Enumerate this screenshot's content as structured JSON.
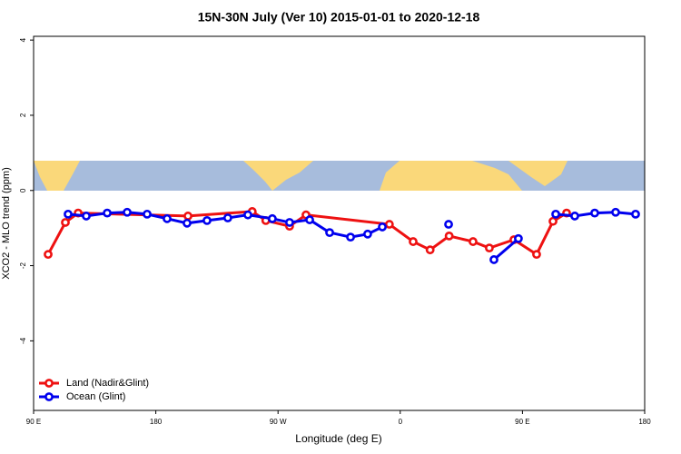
{
  "chart_data": {
    "type": "line",
    "title": "15N-30N July (Ver 10)   2015-01-01 to 2020-12-18",
    "xlabel": "Longitude (deg E)",
    "ylabel": "XCO2 - MLO trend (ppm)",
    "xlim": [
      90,
      540
    ],
    "ylim": [
      -5.85,
      4.1
    ],
    "xticks": [
      {
        "value": 90,
        "label": "90 E"
      },
      {
        "value": 180,
        "label": "180"
      },
      {
        "value": 270,
        "label": "90 W"
      },
      {
        "value": 360,
        "label": "0"
      },
      {
        "value": 450,
        "label": "90 E"
      },
      {
        "value": 540,
        "label": "180"
      }
    ],
    "yticks": [
      4,
      2,
      0,
      -2,
      -4
    ],
    "legend": "bottom-left",
    "series": [
      {
        "name": "Land (Nadir&Glint)",
        "color": "#ee1111",
        "x": [
          100.7,
          113.4,
          122.8,
          203.7,
          251,
          261,
          278.5,
          290.6,
          352,
          369.5,
          382,
          396,
          413.6,
          425.6,
          443.7,
          460.4,
          472.5,
          482.5
        ],
        "values": [
          -1.7,
          -0.85,
          -0.6,
          -0.68,
          -0.56,
          -0.8,
          -0.95,
          -0.65,
          -0.9,
          -1.36,
          -1.58,
          -1.21,
          -1.36,
          -1.53,
          -1.31,
          -1.7,
          -0.82,
          -0.6
        ]
      },
      {
        "name": "Ocean (Glint)",
        "color": "#0000ee",
        "x": [
          115.4,
          128.8,
          144.2,
          158.9,
          173.6,
          188.3,
          203,
          217.7,
          233,
          247.8,
          265.8,
          278.5,
          293.3,
          308,
          323.4,
          336,
          346.8,
          null,
          395.6,
          null,
          429,
          447,
          null,
          474.5,
          488.5,
          503.2,
          518.6,
          533.3
        ],
        "values": [
          -0.63,
          -0.68,
          -0.6,
          -0.58,
          -0.63,
          -0.75,
          -0.87,
          -0.8,
          -0.73,
          -0.65,
          -0.75,
          -0.85,
          -0.78,
          -1.12,
          -1.24,
          -1.16,
          -0.97,
          null,
          -0.9,
          null,
          -1.84,
          -1.28,
          null,
          -0.63,
          -0.68,
          -0.6,
          -0.58,
          -0.63
        ]
      }
    ]
  }
}
